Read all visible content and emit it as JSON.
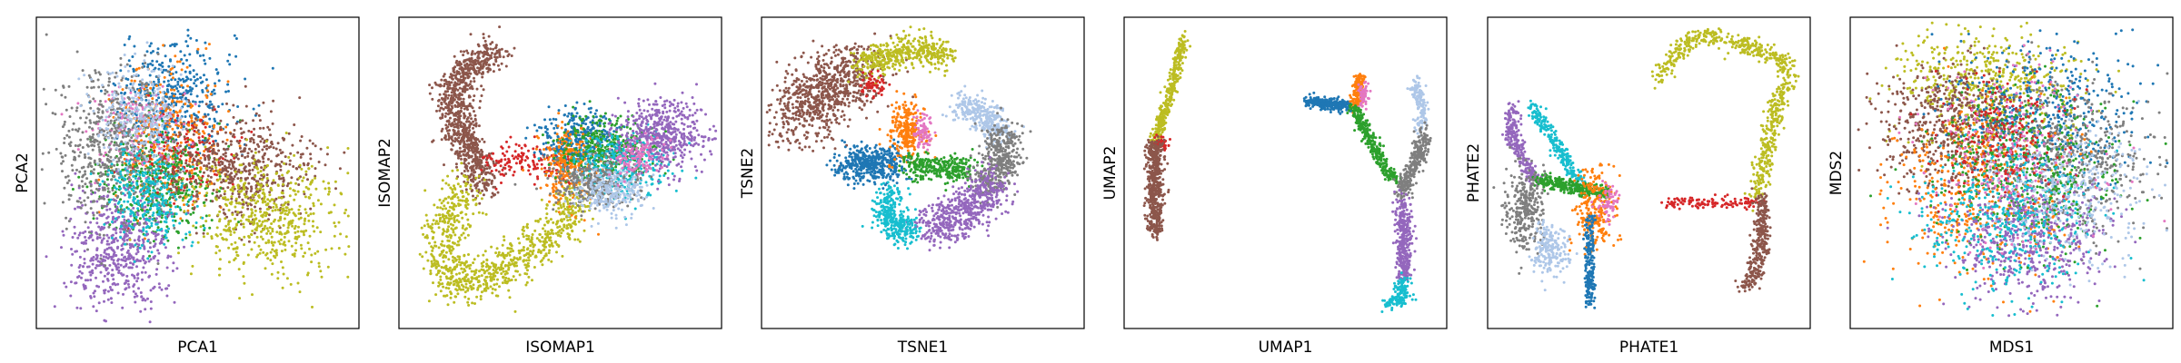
{
  "figure": {
    "panel_count": 6,
    "cluster_palette": [
      "#1f77b4",
      "#ff7f0e",
      "#2ca02c",
      "#d62728",
      "#9467bd",
      "#8c564b",
      "#e377c2",
      "#7f7f7f",
      "#bcbd22",
      "#17becf",
      "#aec7e8"
    ],
    "ticks_shown": false
  },
  "chart_data": [
    {
      "type": "scatter",
      "xlabel": "PCA1",
      "ylabel": "PCA2",
      "xlim": [
        0,
        100
      ],
      "ylim": [
        0,
        100
      ],
      "grid": false,
      "clusters": [
        {
          "color": "#1f77b4",
          "center": [
            43,
            75
          ],
          "spread": [
            9,
            10
          ],
          "size": 450
        },
        {
          "color": "#ff7f0e",
          "center": [
            40,
            62
          ],
          "spread": [
            9,
            12
          ],
          "size": 350
        },
        {
          "color": "#2ca02c",
          "center": [
            37,
            47
          ],
          "spread": [
            9,
            9
          ],
          "size": 450
        },
        {
          "color": "#d62728",
          "center": [
            46,
            55
          ],
          "spread": [
            7,
            8
          ],
          "size": 150
        },
        {
          "color": "#9467bd",
          "center": [
            25,
            25
          ],
          "spread": [
            8,
            11
          ],
          "size": 550
        },
        {
          "color": "#8c564b",
          "center": [
            64,
            52
          ],
          "spread": [
            11,
            9
          ],
          "size": 550
        },
        {
          "color": "#e377c2",
          "center": [
            30,
            65
          ],
          "spread": [
            7,
            8
          ],
          "size": 150
        },
        {
          "color": "#7f7f7f",
          "center": [
            22,
            58
          ],
          "spread": [
            9,
            13
          ],
          "size": 550
        },
        {
          "color": "#bcbd22",
          "center": [
            72,
            35
          ],
          "spread": [
            12,
            10
          ],
          "size": 550
        },
        {
          "color": "#17becf",
          "center": [
            34,
            42
          ],
          "spread": [
            7,
            8
          ],
          "size": 300
        },
        {
          "color": "#aec7e8",
          "center": [
            31,
            68
          ],
          "spread": [
            7,
            8
          ],
          "size": 250
        }
      ]
    },
    {
      "type": "scatter",
      "xlabel": "ISOMAP1",
      "ylabel": "ISOMAP2",
      "xlim": [
        0,
        100
      ],
      "ylim": [
        0,
        100
      ],
      "grid": false,
      "clusters": [
        {
          "color": "#8c564b",
          "path": [
            [
              30,
              91
            ],
            [
              22,
              86
            ],
            [
              16,
              78
            ],
            [
              17,
              66
            ],
            [
              22,
              55
            ],
            [
              26,
              46
            ]
          ],
          "width": 3,
          "size": 900
        },
        {
          "color": "#bcbd22",
          "path": [
            [
              20,
              47
            ],
            [
              14,
              34
            ],
            [
              12,
              20
            ],
            [
              18,
              12
            ],
            [
              30,
              17
            ],
            [
              42,
              25
            ],
            [
              52,
              34
            ],
            [
              54,
              43
            ]
          ],
          "width": 3.5,
          "size": 900
        },
        {
          "color": "#d62728",
          "path": [
            [
              28,
              52
            ],
            [
              38,
              55
            ],
            [
              50,
              52
            ]
          ],
          "width": 3,
          "size": 150
        },
        {
          "color": "#1f77b4",
          "center": [
            56,
            61
          ],
          "spread": [
            6,
            5
          ],
          "size": 350
        },
        {
          "color": "#ff7f0e",
          "center": [
            52,
            52
          ],
          "spread": [
            4,
            6
          ],
          "size": 250
        },
        {
          "color": "#2ca02c",
          "center": [
            65,
            58
          ],
          "spread": [
            7,
            5
          ],
          "size": 350
        },
        {
          "color": "#17becf",
          "center": [
            70,
            52
          ],
          "spread": [
            8,
            5
          ],
          "size": 300
        },
        {
          "color": "#7f7f7f",
          "center": [
            61,
            47
          ],
          "spread": [
            7,
            4
          ],
          "size": 300
        },
        {
          "color": "#aec7e8",
          "center": [
            66,
            44
          ],
          "spread": [
            6,
            4
          ],
          "size": 250
        },
        {
          "color": "#9467bd",
          "center": [
            83,
            63
          ],
          "spread": [
            7,
            6
          ],
          "size": 500
        },
        {
          "color": "#e377c2",
          "center": [
            74,
            55
          ],
          "spread": [
            4,
            3
          ],
          "size": 120
        }
      ]
    },
    {
      "type": "scatter",
      "xlabel": "TSNE1",
      "ylabel": "TSNE2",
      "xlim": [
        0,
        100
      ],
      "ylim": [
        0,
        100
      ],
      "grid": false,
      "clusters": [
        {
          "color": "#8c564b",
          "path": [
            [
              8,
              66
            ],
            [
              15,
              75
            ],
            [
              26,
              83
            ],
            [
              31,
              85
            ]
          ],
          "width": 5.5,
          "size": 800
        },
        {
          "color": "#bcbd22",
          "path": [
            [
              30,
              86
            ],
            [
              40,
              90
            ],
            [
              52,
              92
            ],
            [
              57,
              87
            ]
          ],
          "width": 2.5,
          "size": 450
        },
        {
          "color": "#d62728",
          "center": [
            34,
            79
          ],
          "spread": [
            2,
            2
          ],
          "size": 60
        },
        {
          "color": "#1f77b4",
          "path": [
            [
              25,
              52
            ],
            [
              33,
              54
            ],
            [
              41,
              52
            ]
          ],
          "width": 3,
          "size": 450
        },
        {
          "color": "#ff7f0e",
          "center": [
            45,
            64
          ],
          "spread": [
            3,
            5
          ],
          "size": 250
        },
        {
          "color": "#e377c2",
          "center": [
            50,
            64
          ],
          "spread": [
            1.5,
            3
          ],
          "size": 80
        },
        {
          "color": "#2ca02c",
          "path": [
            [
              45,
              52
            ],
            [
              56,
              52
            ],
            [
              65,
              51
            ]
          ],
          "width": 2,
          "size": 300
        },
        {
          "color": "#aec7e8",
          "path": [
            [
              62,
              72
            ],
            [
              70,
              70
            ],
            [
              74,
              62
            ]
          ],
          "width": 2.5,
          "size": 300
        },
        {
          "color": "#7f7f7f",
          "path": [
            [
              76,
              64
            ],
            [
              75,
              52
            ],
            [
              70,
              46
            ]
          ],
          "width": 3,
          "size": 400
        },
        {
          "color": "#9467bd",
          "path": [
            [
              72,
              47
            ],
            [
              65,
              36
            ],
            [
              52,
              33
            ]
          ],
          "width": 3.5,
          "size": 550
        },
        {
          "color": "#17becf",
          "path": [
            [
              40,
              43
            ],
            [
              38,
              36
            ],
            [
              42,
              31
            ],
            [
              47,
              31
            ]
          ],
          "width": 2.5,
          "size": 350
        }
      ]
    },
    {
      "type": "scatter",
      "xlabel": "UMAP1",
      "ylabel": "UMAP2",
      "xlim": [
        0,
        100
      ],
      "ylim": [
        0,
        100
      ],
      "grid": false,
      "clusters": [
        {
          "color": "#bcbd22",
          "path": [
            [
              17,
              95
            ],
            [
              14,
              80
            ],
            [
              10,
              66
            ],
            [
              8,
              60
            ]
          ],
          "width": 0.9,
          "size": 350
        },
        {
          "color": "#d62728",
          "center": [
            10,
            60
          ],
          "spread": [
            1.2,
            1
          ],
          "size": 50
        },
        {
          "color": "#8c564b",
          "path": [
            [
              8,
              60
            ],
            [
              8,
              45
            ],
            [
              8,
              30
            ]
          ],
          "width": 1.4,
          "size": 500
        },
        {
          "color": "#1f77b4",
          "path": [
            [
              57,
              74
            ],
            [
              64,
              73
            ],
            [
              70,
              72
            ]
          ],
          "width": 1,
          "size": 250
        },
        {
          "color": "#ff7f0e",
          "path": [
            [
              74,
              82
            ],
            [
              73,
              74
            ],
            [
              72,
              72
            ]
          ],
          "width": 1,
          "size": 150
        },
        {
          "color": "#e377c2",
          "center": [
            75,
            76
          ],
          "spread": [
            1,
            2
          ],
          "size": 60
        },
        {
          "color": "#2ca02c",
          "path": [
            [
              72,
              72
            ],
            [
              76,
              63
            ],
            [
              83,
              50
            ],
            [
              86,
              48
            ]
          ],
          "width": 1,
          "size": 300
        },
        {
          "color": "#aec7e8",
          "path": [
            [
              92,
              80
            ],
            [
              94,
              70
            ],
            [
              93,
              64
            ]
          ],
          "width": 1,
          "size": 150
        },
        {
          "color": "#7f7f7f",
          "path": [
            [
              94,
              64
            ],
            [
              93,
              55
            ],
            [
              89,
              48
            ],
            [
              87,
              42
            ]
          ],
          "width": 1.3,
          "size": 300
        },
        {
          "color": "#9467bd",
          "path": [
            [
              88,
              42
            ],
            [
              88,
              28
            ],
            [
              88,
              14
            ]
          ],
          "width": 1.3,
          "size": 350
        },
        {
          "color": "#17becf",
          "path": [
            [
              88,
              14
            ],
            [
              87,
              8
            ],
            [
              83,
              7
            ]
          ],
          "width": 1.3,
          "size": 150
        }
      ]
    },
    {
      "type": "scatter",
      "xlabel": "PHATE1",
      "ylabel": "PHATE2",
      "xlim": [
        0,
        100
      ],
      "ylim": [
        0,
        100
      ],
      "grid": false,
      "clusters": [
        {
          "color": "#bcbd22",
          "path": [
            [
              52,
              80
            ],
            [
              60,
              92
            ],
            [
              68,
              96
            ],
            [
              82,
              92
            ],
            [
              95,
              86
            ],
            [
              88,
              60
            ],
            [
              85,
              42
            ]
          ],
          "width": 1.5,
          "size": 650
        },
        {
          "color": "#d62728",
          "path": [
            [
              55,
              40
            ],
            [
              65,
              40
            ],
            [
              80,
              40
            ],
            [
              86,
              40
            ]
          ],
          "width": 1,
          "size": 120
        },
        {
          "color": "#8c564b",
          "path": [
            [
              86,
              42
            ],
            [
              86,
              25
            ],
            [
              84,
              15
            ],
            [
              80,
              12
            ]
          ],
          "width": 1.3,
          "size": 300
        },
        {
          "color": "#9467bd",
          "path": [
            [
              6,
              72
            ],
            [
              6,
              62
            ],
            [
              10,
              54
            ],
            [
              14,
              47
            ]
          ],
          "width": 1.2,
          "size": 250
        },
        {
          "color": "#17becf",
          "path": [
            [
              12,
              72
            ],
            [
              18,
              64
            ],
            [
              22,
              56
            ],
            [
              28,
              47
            ]
          ],
          "width": 1.2,
          "size": 250
        },
        {
          "color": "#2ca02c",
          "path": [
            [
              14,
              48
            ],
            [
              22,
              46
            ],
            [
              30,
              44
            ],
            [
              37,
              43
            ]
          ],
          "width": 1.2,
          "size": 300
        },
        {
          "color": "#7f7f7f",
          "center": [
            10,
            38
          ],
          "spread": [
            3,
            7
          ],
          "size": 300
        },
        {
          "color": "#aec7e8",
          "center": [
            18,
            24
          ],
          "spread": [
            3,
            4
          ],
          "size": 200
        },
        {
          "color": "#ff7f0e",
          "center": [
            33,
            38
          ],
          "spread": [
            3,
            7
          ],
          "size": 250
        },
        {
          "color": "#1f77b4",
          "path": [
            [
              31,
              35
            ],
            [
              31,
              22
            ],
            [
              31,
              6
            ]
          ],
          "width": 0.8,
          "size": 200
        },
        {
          "color": "#e377c2",
          "center": [
            37,
            40
          ],
          "spread": [
            2,
            3
          ],
          "size": 60
        }
      ]
    },
    {
      "type": "scatter",
      "xlabel": "MDS1",
      "ylabel": "MDS2",
      "xlim": [
        0,
        100
      ],
      "ylim": [
        0,
        100
      ],
      "grid": false,
      "clusters": [
        {
          "color": "#bcbd22",
          "center": [
            42,
            78
          ],
          "spread": [
            14,
            10
          ],
          "size": 550
        },
        {
          "color": "#8c564b",
          "center": [
            30,
            65
          ],
          "spread": [
            12,
            10
          ],
          "size": 550
        },
        {
          "color": "#1f77b4",
          "center": [
            60,
            70
          ],
          "spread": [
            14,
            11
          ],
          "size": 500
        },
        {
          "color": "#7f7f7f",
          "center": [
            70,
            55
          ],
          "spread": [
            12,
            12
          ],
          "size": 500
        },
        {
          "color": "#ff7f0e",
          "center": [
            40,
            45
          ],
          "spread": [
            14,
            14
          ],
          "size": 450
        },
        {
          "color": "#2ca02c",
          "center": [
            55,
            50
          ],
          "spread": [
            15,
            14
          ],
          "size": 450
        },
        {
          "color": "#9467bd",
          "center": [
            55,
            28
          ],
          "spread": [
            13,
            10
          ],
          "size": 550
        },
        {
          "color": "#17becf",
          "center": [
            48,
            35
          ],
          "spread": [
            14,
            12
          ],
          "size": 450
        },
        {
          "color": "#d62728",
          "center": [
            47,
            62
          ],
          "spread": [
            10,
            10
          ],
          "size": 200
        },
        {
          "color": "#aec7e8",
          "center": [
            70,
            42
          ],
          "spread": [
            12,
            12
          ],
          "size": 300
        },
        {
          "color": "#e377c2",
          "center": [
            50,
            55
          ],
          "spread": [
            16,
            16
          ],
          "size": 200
        }
      ]
    }
  ]
}
